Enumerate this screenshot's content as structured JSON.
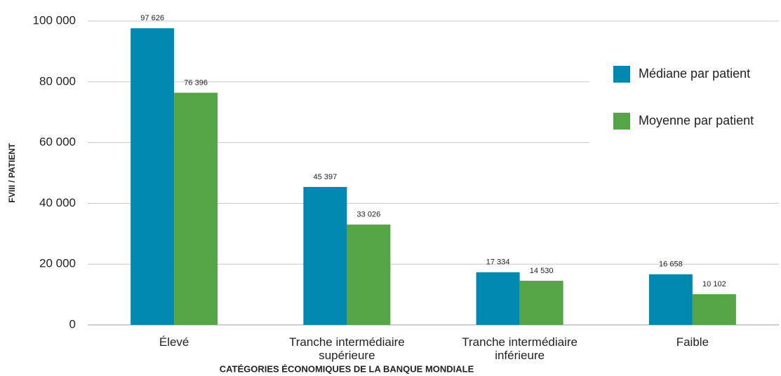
{
  "chart_data": {
    "type": "bar",
    "x_label": "CATÉGORIES ÉCONOMIQUES DE LA BANQUE MONDIALE",
    "y_label": "FVIII / PATIENT",
    "categories": [
      "Élevé",
      "Tranche intermédiaire supérieure",
      "Tranche intermédiaire inférieure",
      "Faible"
    ],
    "series": [
      {
        "name": "Médiane par patient",
        "color": "#0089b0",
        "values": [
          97626,
          45397,
          17334,
          16658
        ],
        "value_labels": [
          "97 626",
          "45 397",
          "17 334",
          "16 658"
        ]
      },
      {
        "name": "Moyenne par patient",
        "color": "#55a446",
        "values": [
          76396,
          33026,
          14530,
          10102
        ],
        "value_labels": [
          "76 396",
          "33 026",
          "14 530",
          "10 102"
        ]
      }
    ],
    "ylim": [
      0,
      100000
    ],
    "yticks": [
      0,
      {
        "value": 20000,
        "label": "20 000"
      },
      {
        "value": 40000,
        "label": "40 000"
      },
      {
        "value": 60000,
        "label": "60 000"
      },
      {
        "value": 80000,
        "label": "80 000"
      },
      {
        "value": 100000,
        "label": "100 000"
      }
    ],
    "grid": true,
    "legend": "right"
  }
}
